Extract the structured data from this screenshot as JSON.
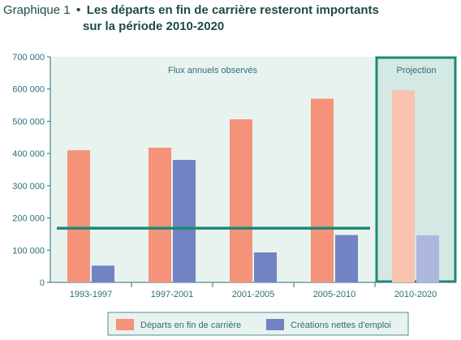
{
  "title": {
    "prefix": "Graphique 1",
    "bullet": "•",
    "line1": "Les départs en fin de carrière resteront importants",
    "line2": "sur la période 2010-2020"
  },
  "colors": {
    "departs": "#f4927a",
    "creations": "#7283c4",
    "departs_projection": "#f9c3b0",
    "creations_projection": "#adb6dd",
    "panel_bg": "#e8f3ef",
    "projection_bg": "#d4e8e4",
    "projection_border": "#1d8a74",
    "reference_line": "#1d8a74",
    "axis": "#2e6e7a"
  },
  "chart_data": {
    "type": "bar",
    "categories": [
      "1993-1997",
      "1997-2001",
      "2001-2005",
      "2005-2010",
      "2010-2020"
    ],
    "series": [
      {
        "name": "Départs en fin de carrière",
        "values": [
          410000,
          418000,
          506000,
          570000,
          596000
        ]
      },
      {
        "name": "Créations nettes d'emploi",
        "values": [
          52000,
          380000,
          93000,
          147000,
          146000
        ]
      }
    ],
    "reference_line": {
      "value": 168000
    },
    "annotations": {
      "observed": "Flux annuels observés",
      "projection": "Projection"
    },
    "projected_categories": [
      "2010-2020"
    ],
    "ylim": [
      0,
      700000
    ],
    "yticks": [
      0,
      100000,
      200000,
      300000,
      400000,
      500000,
      600000,
      700000
    ],
    "ytick_labels": [
      "0",
      "100 000",
      "200 000",
      "300 000",
      "400 000",
      "500 000",
      "600 000",
      "700 000"
    ],
    "legend": {
      "position": "bottom",
      "items": [
        "Départs en fin de carrière",
        "Créations nettes d'emploi"
      ]
    },
    "grid": false,
    "xlabel": "",
    "ylabel": ""
  }
}
